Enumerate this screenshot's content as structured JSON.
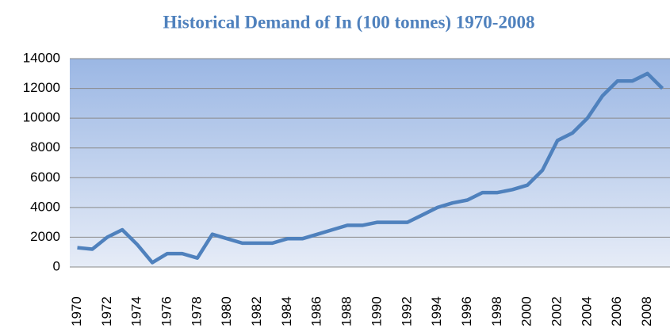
{
  "chart_data": {
    "type": "line",
    "title": "Historical Demand of In (100 tonnes) 1970-2008",
    "categories": [
      "1970",
      null,
      "1972",
      null,
      "1974",
      null,
      "1976",
      null,
      "1978",
      null,
      "1980",
      null,
      "1982",
      null,
      "1984",
      null,
      "1986",
      null,
      "1988",
      null,
      "1990",
      null,
      "1992",
      null,
      "1994",
      null,
      "1996",
      null,
      "1998",
      null,
      "2000",
      null,
      "2002",
      null,
      "2004",
      null,
      "2006",
      null,
      "2008",
      null
    ],
    "values": [
      1300,
      1200,
      2000,
      2500,
      1500,
      300,
      900,
      900,
      600,
      2200,
      1900,
      1600,
      1600,
      1600,
      1900,
      1900,
      2200,
      2500,
      2800,
      2800,
      3000,
      3000,
      3000,
      3500,
      4000,
      4300,
      4500,
      5000,
      5000,
      5200,
      5500,
      6500,
      8500,
      9000,
      10000,
      11500,
      12500,
      12500,
      13000,
      12000
    ],
    "color": "#4f81bd",
    "ylim": [
      0,
      14000
    ],
    "yticks": [
      0,
      2000,
      4000,
      6000,
      8000,
      10000,
      12000,
      14000
    ],
    "grid": true
  }
}
